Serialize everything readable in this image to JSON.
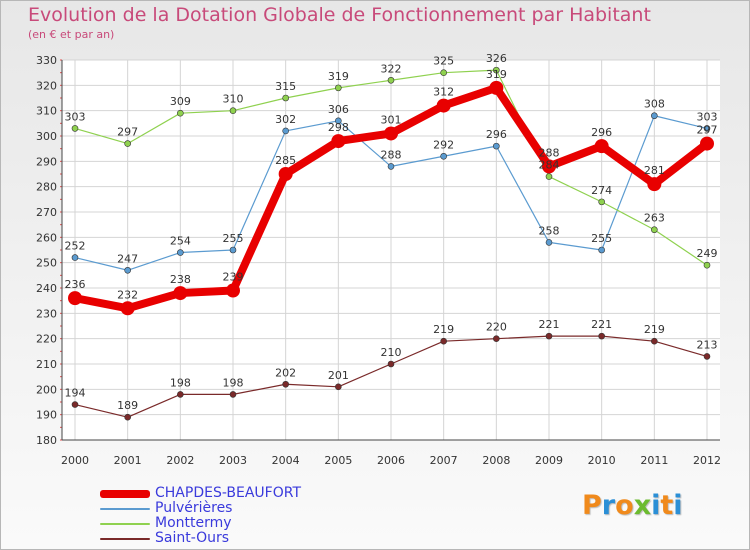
{
  "title": "Evolution de la Dotation Globale de Fonctionnement par Habitant",
  "subtitle": "(en € et par an)",
  "logo": {
    "text": "Proxiti",
    "letters": [
      {
        "ch": "P",
        "color": "#f08a1c"
      },
      {
        "ch": "r",
        "color": "#2b8fd6"
      },
      {
        "ch": "o",
        "color": "#f08a1c"
      },
      {
        "ch": "x",
        "color": "#6cbb2f"
      },
      {
        "ch": "i",
        "color": "#2b8fd6"
      },
      {
        "ch": "t",
        "color": "#f08a1c"
      },
      {
        "ch": "i",
        "color": "#2b8fd6"
      }
    ]
  },
  "chart_data": {
    "type": "line",
    "title": "Evolution de la Dotation Globale de Fonctionnement par Habitant",
    "subtitle": "(en € et par an)",
    "xlabel": "",
    "ylabel": "",
    "x": [
      "2000",
      "2001",
      "2002",
      "2003",
      "2004",
      "2005",
      "2006",
      "2007",
      "2008",
      "2009",
      "2010",
      "2011",
      "2012"
    ],
    "ylim": [
      180,
      330
    ],
    "yticks": [
      180,
      190,
      200,
      210,
      220,
      230,
      240,
      250,
      260,
      270,
      280,
      290,
      300,
      310,
      320,
      330
    ],
    "grid": true,
    "legend_position": "bottom-left",
    "series": [
      {
        "name": "CHAPDES-BEAUFORT",
        "color": "#e80000",
        "values": [
          236,
          232,
          238,
          239,
          285,
          298,
          301,
          312,
          319,
          288,
          296,
          281,
          297
        ],
        "labels": [
          "236",
          "232",
          "238",
          "239",
          "285",
          "298",
          "301",
          "312",
          "319",
          "288",
          "296",
          "281",
          "297"
        ]
      },
      {
        "name": "Pulvérières",
        "color": "#5b9bd0",
        "values": [
          252,
          247,
          254,
          255,
          302,
          306,
          288,
          292,
          296,
          258,
          255,
          308,
          303
        ],
        "labels": [
          "252",
          "247",
          "254",
          "255",
          "302",
          "306",
          "288",
          "292",
          "296",
          "258",
          "255",
          "308",
          "303"
        ]
      },
      {
        "name": "Monttermy",
        "color": "#8fd14f",
        "values": [
          303,
          297,
          309,
          310,
          315,
          319,
          322,
          325,
          326,
          284,
          274,
          263,
          249
        ],
        "labels": [
          "303",
          "297",
          "309",
          "310",
          "315",
          "319",
          "322",
          "325",
          "326",
          "284",
          "274",
          "263",
          "249"
        ]
      },
      {
        "name": "Saint-Ours",
        "color": "#7a2a2a",
        "values": [
          194,
          189,
          198,
          198,
          202,
          201,
          210,
          219,
          220,
          221,
          221,
          219,
          213
        ],
        "labels": [
          "194",
          "189",
          "198",
          "198",
          "202",
          "201",
          "210",
          "219",
          "220",
          "221",
          "221",
          "219",
          "213"
        ]
      }
    ]
  }
}
